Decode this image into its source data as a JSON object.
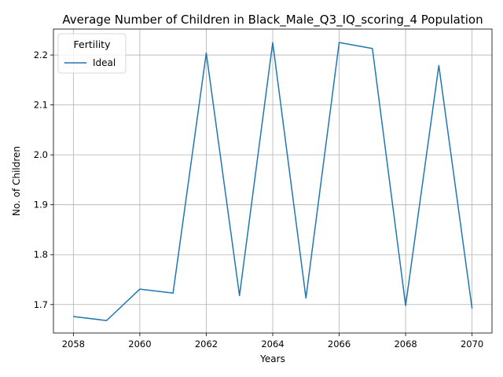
{
  "chart_data": {
    "type": "line",
    "title": "Average Number of Children in Black_Male_Q3_IQ_scoring_4 Population",
    "xlabel": "Years",
    "ylabel": "No. of Children",
    "xlim": [
      2057.4,
      2070.6
    ],
    "ylim": [
      1.643,
      2.252
    ],
    "xticks": [
      2058,
      2060,
      2062,
      2064,
      2066,
      2068,
      2070
    ],
    "yticks": [
      1.7,
      1.8,
      1.9,
      2.0,
      2.1,
      2.2
    ],
    "xtick_labels": [
      "2058",
      "2060",
      "2062",
      "2064",
      "2066",
      "2068",
      "2070"
    ],
    "ytick_labels": [
      "1.7",
      "1.8",
      "1.9",
      "2.0",
      "2.1",
      "2.2"
    ],
    "grid": true,
    "legend": {
      "title": "Fertility",
      "placement": "top-left"
    },
    "series": [
      {
        "name": "Ideal",
        "color": "#1f77b4",
        "x": [
          2058,
          2059,
          2060,
          2061,
          2062,
          2063,
          2064,
          2065,
          2066,
          2067,
          2068,
          2069,
          2070
        ],
        "y": [
          1.676,
          1.668,
          1.731,
          1.723,
          2.204,
          1.718,
          2.225,
          1.713,
          2.225,
          2.213,
          1.698,
          2.179,
          1.692
        ]
      }
    ]
  }
}
